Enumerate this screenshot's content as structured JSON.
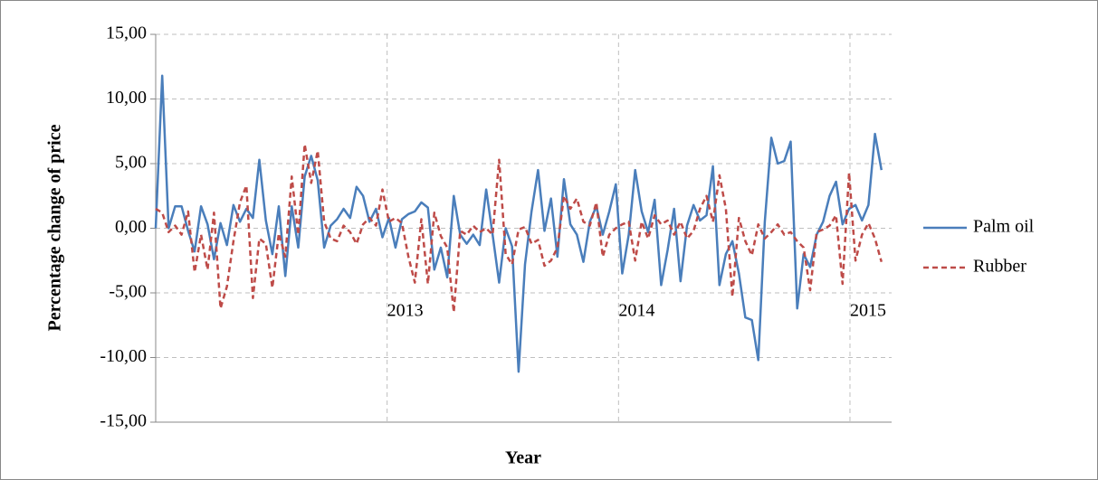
{
  "chart_data": {
    "type": "line",
    "x_label": "Year",
    "y_label": "Percentage change of price",
    "xlim": [
      2012,
      2015.18
    ],
    "xticks": [
      2013,
      2014,
      2015
    ],
    "ylim": [
      -15,
      15
    ],
    "yticks": [
      {
        "value": -15,
        "label": "-15,00"
      },
      {
        "value": -10,
        "label": "-10,00"
      },
      {
        "value": -5,
        "label": "-5,00"
      },
      {
        "value": 0,
        "label": "0,00"
      },
      {
        "value": 5,
        "label": "5,00"
      },
      {
        "value": 10,
        "label": "10,00"
      },
      {
        "value": 15,
        "label": "15,00"
      }
    ],
    "grid": true,
    "legend": "right",
    "x": [
      2012,
      2012.028,
      2012.056,
      2012.084,
      2012.112,
      2012.14,
      2012.168,
      2012.196,
      2012.224,
      2012.252,
      2012.28,
      2012.308,
      2012.336,
      2012.364,
      2012.392,
      2012.42,
      2012.448,
      2012.476,
      2012.504,
      2012.532,
      2012.56,
      2012.588,
      2012.616,
      2012.644,
      2012.672,
      2012.7,
      2012.728,
      2012.756,
      2012.784,
      2012.812,
      2012.84,
      2012.868,
      2012.896,
      2012.924,
      2012.952,
      2012.98,
      2013.008,
      2013.036,
      2013.064,
      2013.092,
      2013.12,
      2013.148,
      2013.176,
      2013.204,
      2013.232,
      2013.26,
      2013.288,
      2013.316,
      2013.344,
      2013.372,
      2013.4,
      2013.428,
      2013.456,
      2013.484,
      2013.512,
      2013.54,
      2013.568,
      2013.596,
      2013.624,
      2013.652,
      2013.68,
      2013.708,
      2013.736,
      2013.764,
      2013.792,
      2013.82,
      2013.848,
      2013.876,
      2013.904,
      2013.932,
      2013.96,
      2013.988,
      2014.016,
      2014.044,
      2014.072,
      2014.1,
      2014.128,
      2014.156,
      2014.184,
      2014.212,
      2014.24,
      2014.268,
      2014.296,
      2014.324,
      2014.352,
      2014.38,
      2014.408,
      2014.436,
      2014.464,
      2014.492,
      2014.52,
      2014.548,
      2014.576,
      2014.604,
      2014.632,
      2014.66,
      2014.688,
      2014.716,
      2014.744,
      2014.772,
      2014.8,
      2014.828,
      2014.856,
      2014.884,
      2014.912,
      2014.94,
      2014.968,
      2014.996,
      2015.024,
      2015.052,
      2015.08,
      2015.108,
      2015.136
    ],
    "series": [
      {
        "name": "Palm oil",
        "color": "#4a7ebb",
        "dash": "none",
        "values": [
          0,
          11.8,
          0,
          1.7,
          1.7,
          -0.2,
          -1.8,
          1.7,
          0.3,
          -2.4,
          0.4,
          -1.3,
          1.8,
          0.5,
          1.5,
          0.8,
          5.3,
          0.6,
          -2,
          1.7,
          -3.7,
          1.7,
          -1.5,
          4,
          5.6,
          3.7,
          -1.5,
          0.2,
          0.7,
          1.5,
          0.8,
          3.2,
          2.5,
          0.5,
          1.5,
          -0.7,
          0.8,
          -1.5,
          0.7,
          1.1,
          1.3,
          2,
          1.6,
          -3.2,
          -1.5,
          -3.8,
          2.5,
          -0.5,
          -1.2,
          -0.5,
          -1.3,
          3,
          -0.5,
          -4.2,
          0,
          -1.4,
          -11.1,
          -2.8,
          1.3,
          4.5,
          -0.2,
          2.3,
          -2.2,
          3.8,
          0.3,
          -0.5,
          -2.6,
          0.5,
          1.7,
          -0.5,
          1.3,
          3.4,
          -3.5,
          -0.5,
          4.5,
          1.3,
          -0.3,
          2.2,
          -4.4,
          -1.7,
          1.5,
          -4.1,
          0.2,
          1.8,
          0.6,
          1,
          4.8,
          -4.4,
          -2,
          -1,
          -3.5,
          -6.9,
          -7.1,
          -10.2,
          0.5,
          7,
          5,
          5.2,
          6.7,
          -6.2,
          -2,
          -3,
          -0.5,
          0.5,
          2.5,
          3.6,
          0.3,
          1.5,
          1.8,
          0.6,
          1.8,
          7.3,
          4.5
        ]
      },
      {
        "name": "Rubber",
        "color": "#be4b48",
        "dash": "6,4",
        "values": [
          1.5,
          1.2,
          -0.3,
          0.2,
          -0.5,
          1.3,
          -3.4,
          -0.5,
          -3.2,
          1.2,
          -6.2,
          -4.5,
          -1,
          2,
          3.3,
          -5.4,
          -0.8,
          -1.2,
          -4.6,
          -0.4,
          -2.2,
          4,
          -0.5,
          6.5,
          3.5,
          6,
          0.5,
          -0.8,
          -1,
          0.2,
          -0.3,
          -1.2,
          0.3,
          0.8,
          0.2,
          3,
          0.5,
          0.8,
          0.4,
          -2.2,
          -4.2,
          0.7,
          -4.3,
          1.2,
          -0.6,
          -1.5,
          -6.5,
          -0.2,
          -0.5,
          0.2,
          -0.3,
          0,
          -0.5,
          5.3,
          -2,
          -2.8,
          -0.1,
          0.1,
          -1.2,
          -0.9,
          -2.9,
          -2.5,
          -1.5,
          2.5,
          1.5,
          2.3,
          0.5,
          0.2,
          2,
          -2.2,
          -0.5,
          0,
          0.3,
          0.5,
          -2.5,
          0.5,
          -0.8,
          1,
          0.3,
          0.6,
          -0.5,
          0.5,
          -0.8,
          -0.2,
          1.5,
          2.5,
          0.5,
          4.1,
          1.5,
          -5.3,
          0.8,
          -1,
          -2.1,
          0.3,
          -0.8,
          -0.3,
          0.3,
          -0.5,
          -0.3,
          -1,
          -1.5,
          -4.8,
          -0.3,
          -0.1,
          0.2,
          1,
          -4.3,
          4.3,
          -2.5,
          -0.5,
          0.4,
          -0.8,
          -2.6
        ]
      }
    ]
  }
}
